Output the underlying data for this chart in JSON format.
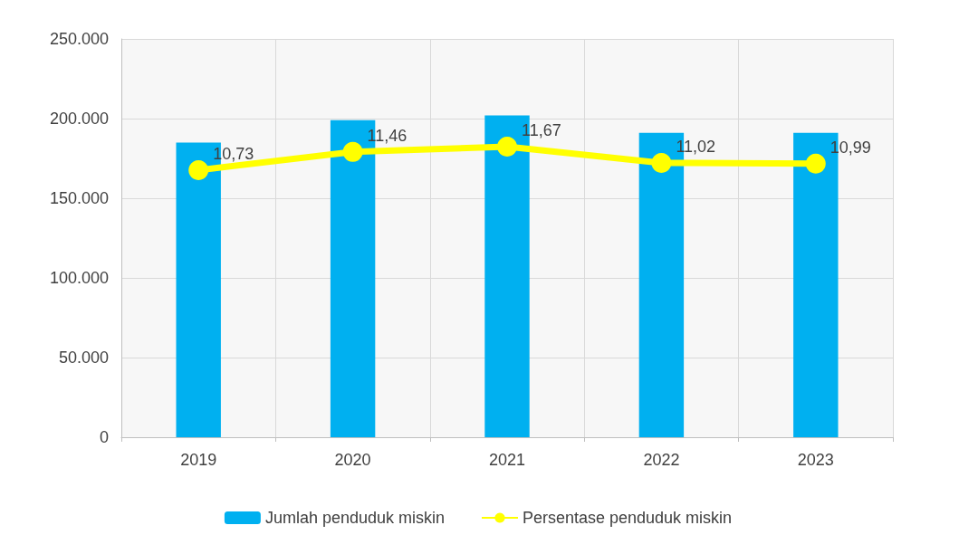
{
  "chart_data": {
    "type": "bar",
    "categories": [
      "2019",
      "2020",
      "2021",
      "2022",
      "2023"
    ],
    "series": [
      {
        "name": "Jumlah penduduk miskin",
        "color": "#00b0f0",
        "values": [
          185000,
          199000,
          202000,
          191000,
          191000
        ]
      },
      {
        "name": "Persentase penduduk miskin",
        "type": "line",
        "axis": "y2",
        "color": "#ffff00",
        "marker": "circle",
        "values": [
          10.73,
          11.46,
          11.67,
          11.02,
          10.99
        ],
        "value_labels": [
          "10,73",
          "11,46",
          "11,67",
          "11,02",
          "10,99"
        ]
      }
    ],
    "ylim": [
      0,
      250000
    ],
    "yticks": [
      {
        "value": 0,
        "label": "0"
      },
      {
        "value": 50000,
        "label": "50.000"
      },
      {
        "value": 100000,
        "label": "100.000"
      },
      {
        "value": 150000,
        "label": "150.000"
      },
      {
        "value": 200000,
        "label": "200.000"
      },
      {
        "value": 250000,
        "label": "250.000"
      }
    ],
    "y2lim": [
      0,
      16
    ],
    "grid": true,
    "legend": "bottom"
  }
}
